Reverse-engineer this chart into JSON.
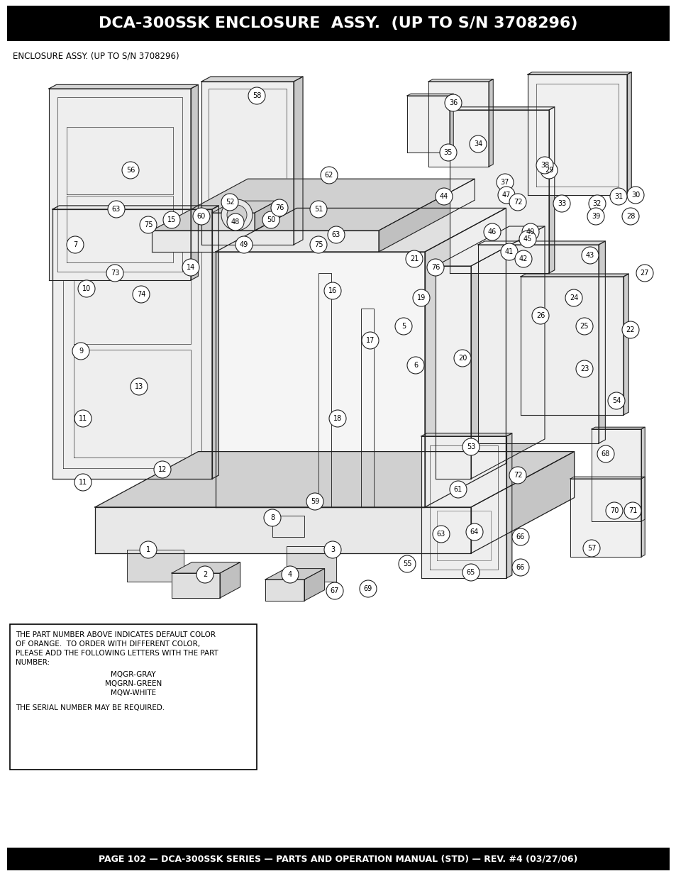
{
  "title": "DCA-300SSK ENCLOSURE  ASSY.  (UP TO S/N 3708296)",
  "footer": "PAGE 102 — DCA-300SSK SERIES — PARTS AND OPERATION MANUAL (STD) — REV. #4 (03/27/06)",
  "subtitle": "ENCLOSURE ASSY. (UP TO S/N 3708296)",
  "header_bg": "#000000",
  "header_text_color": "#ffffff",
  "footer_bg": "#000000",
  "footer_text_color": "#ffffff",
  "page_bg": "#ffffff",
  "note_lines": [
    "THE PART NUMBER ABOVE INDICATES DEFAULT COLOR",
    "OF ORANGE.  TO ORDER WITH DIFFERENT COLOR,",
    "PLEASE ADD THE FOLLOWING LETTERS WITH THE PART",
    "NUMBER:"
  ],
  "note_center": [
    "MQGR-GRAY",
    "MQGRN-GREEN",
    "MQW-WHITE"
  ],
  "note_bottom": "THE SERIAL NUMBER MAY BE REQUIRED.",
  "title_fontsize": 16,
  "footer_fontsize": 9,
  "subtitle_fontsize": 8.5,
  "note_fontsize": 7.5,
  "fig_width": 9.54,
  "fig_height": 12.35,
  "dpi": 100
}
